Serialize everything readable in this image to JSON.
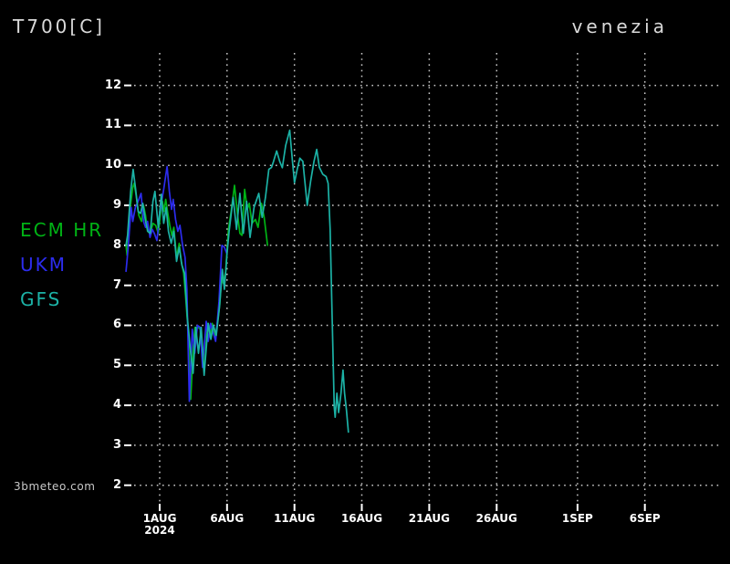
{
  "header": {
    "title": "T700[C]",
    "location": "venezia"
  },
  "watermark": "3bmeteo.com",
  "legend": {
    "items": [
      {
        "label": "ECM HR",
        "color": "#00b315"
      },
      {
        "label": "UKM",
        "color": "#2c2cee"
      },
      {
        "label": "GFS",
        "color": "#1cb2a6"
      }
    ]
  },
  "colors": {
    "background": "#000000",
    "grid": "#c9c9c9",
    "axis_text": "#ffffff",
    "header_text": "#d9d9d9"
  },
  "chart_data": {
    "type": "line",
    "title": "T700[C]",
    "subtitle": "venezia",
    "xlabel": "",
    "ylabel": "",
    "ylim": [
      2,
      12
    ],
    "grid": "dotted",
    "legend_position": "left",
    "x_unit": "days relative to 1 AUG 2024",
    "yticks": [
      12,
      11,
      10,
      9,
      8,
      7,
      6,
      5,
      4,
      3,
      2
    ],
    "xticks": [
      {
        "day": 0,
        "label": "1AUG",
        "sub": "2024"
      },
      {
        "day": 5,
        "label": "6AUG"
      },
      {
        "day": 10,
        "label": "11AUG"
      },
      {
        "day": 15,
        "label": "16AUG"
      },
      {
        "day": 20,
        "label": "21AUG"
      },
      {
        "day": 25,
        "label": "26AUG"
      },
      {
        "day": 31,
        "label": "1SEP"
      },
      {
        "day": 36,
        "label": "6SEP"
      }
    ],
    "series": [
      {
        "name": "ECM HR",
        "color": "#00b315",
        "points": [
          [
            -2.5,
            8.0
          ],
          [
            -2.42,
            7.75
          ],
          [
            -2.2,
            8.9
          ],
          [
            -2.0,
            9.45
          ],
          [
            -1.9,
            9.55
          ],
          [
            -1.75,
            9.25
          ],
          [
            -1.55,
            8.75
          ],
          [
            -1.35,
            8.6
          ],
          [
            -1.2,
            9.0
          ],
          [
            -1.05,
            8.75
          ],
          [
            -0.9,
            8.35
          ],
          [
            -0.7,
            8.3
          ],
          [
            -0.5,
            8.55
          ],
          [
            -0.3,
            8.5
          ],
          [
            -0.1,
            8.3
          ],
          [
            0.1,
            8.9
          ],
          [
            0.2,
            9.1
          ],
          [
            0.32,
            8.85
          ],
          [
            0.45,
            9.15
          ],
          [
            0.6,
            8.8
          ],
          [
            0.75,
            8.5
          ],
          [
            0.9,
            8.25
          ],
          [
            1.05,
            8.45
          ],
          [
            1.25,
            7.7
          ],
          [
            1.45,
            8.05
          ],
          [
            1.6,
            7.6
          ],
          [
            1.78,
            7.3
          ],
          [
            1.95,
            6.6
          ],
          [
            2.1,
            5.9
          ],
          [
            2.3,
            4.15
          ],
          [
            2.5,
            5.5
          ],
          [
            2.62,
            5.95
          ],
          [
            2.85,
            5.95
          ],
          [
            3.0,
            5.9
          ],
          [
            3.15,
            5.3
          ],
          [
            3.3,
            4.85
          ],
          [
            3.55,
            6.05
          ],
          [
            3.75,
            5.7
          ],
          [
            3.9,
            6.05
          ],
          [
            4.1,
            5.7
          ],
          [
            4.3,
            6.1
          ],
          [
            4.45,
            6.5
          ],
          [
            4.6,
            7.2
          ],
          [
            4.72,
            7.05
          ],
          [
            4.9,
            7.35
          ],
          [
            5.1,
            8.4
          ],
          [
            5.3,
            8.85
          ],
          [
            5.55,
            9.5
          ],
          [
            5.75,
            8.85
          ],
          [
            5.95,
            8.3
          ],
          [
            6.1,
            8.25
          ],
          [
            6.3,
            9.4
          ],
          [
            6.5,
            8.9
          ],
          [
            6.65,
            9.05
          ],
          [
            6.85,
            8.55
          ],
          [
            7.1,
            8.65
          ],
          [
            7.3,
            8.45
          ],
          [
            7.55,
            9.05
          ],
          [
            7.75,
            8.7
          ],
          [
            8.0,
            8.0
          ]
        ]
      },
      {
        "name": "UKM",
        "color": "#2c2cee",
        "points": [
          [
            -2.5,
            7.35
          ],
          [
            -2.35,
            7.9
          ],
          [
            -2.12,
            8.95
          ],
          [
            -2.0,
            8.6
          ],
          [
            -1.8,
            8.95
          ],
          [
            -1.6,
            9.1
          ],
          [
            -1.38,
            9.3
          ],
          [
            -1.2,
            8.6
          ],
          [
            -1.05,
            8.45
          ],
          [
            -0.9,
            8.6
          ],
          [
            -0.72,
            8.2
          ],
          [
            -0.55,
            8.4
          ],
          [
            -0.4,
            8.3
          ],
          [
            -0.2,
            8.12
          ],
          [
            0.0,
            8.8
          ],
          [
            0.3,
            9.4
          ],
          [
            0.55,
            9.97
          ],
          [
            0.72,
            9.35
          ],
          [
            0.88,
            8.9
          ],
          [
            1.0,
            9.15
          ],
          [
            1.18,
            8.65
          ],
          [
            1.35,
            8.35
          ],
          [
            1.5,
            8.5
          ],
          [
            1.7,
            8.0
          ],
          [
            1.88,
            7.7
          ],
          [
            2.02,
            6.9
          ],
          [
            2.2,
            4.1
          ],
          [
            2.42,
            5.9
          ],
          [
            2.6,
            5.3
          ],
          [
            2.8,
            6.0
          ],
          [
            3.0,
            5.95
          ],
          [
            3.18,
            4.95
          ],
          [
            3.45,
            6.1
          ],
          [
            3.6,
            5.6
          ],
          [
            3.78,
            6.05
          ],
          [
            3.95,
            5.85
          ],
          [
            4.15,
            5.6
          ],
          [
            4.4,
            6.6
          ],
          [
            4.62,
            8.0
          ],
          [
            4.8,
            7.95
          ],
          [
            5.0,
            7.78
          ]
        ]
      },
      {
        "name": "GFS",
        "color": "#1cb2a6",
        "points": [
          [
            -2.5,
            8.0
          ],
          [
            -2.38,
            8.25
          ],
          [
            -2.15,
            9.35
          ],
          [
            -1.97,
            9.9
          ],
          [
            -1.8,
            9.45
          ],
          [
            -1.6,
            8.85
          ],
          [
            -1.42,
            8.8
          ],
          [
            -1.25,
            9.05
          ],
          [
            -1.05,
            8.6
          ],
          [
            -0.88,
            8.35
          ],
          [
            -0.7,
            8.3
          ],
          [
            -0.5,
            9.1
          ],
          [
            -0.35,
            9.35
          ],
          [
            -0.1,
            8.45
          ],
          [
            0.12,
            9.28
          ],
          [
            0.3,
            8.55
          ],
          [
            0.48,
            8.95
          ],
          [
            0.65,
            8.35
          ],
          [
            0.85,
            8.05
          ],
          [
            1.05,
            8.35
          ],
          [
            1.25,
            7.6
          ],
          [
            1.45,
            7.95
          ],
          [
            1.65,
            7.5
          ],
          [
            1.85,
            7.3
          ],
          [
            2.05,
            6.2
          ],
          [
            2.3,
            5.3
          ],
          [
            2.48,
            4.8
          ],
          [
            2.68,
            5.95
          ],
          [
            2.88,
            5.3
          ],
          [
            3.08,
            5.95
          ],
          [
            3.3,
            4.75
          ],
          [
            3.6,
            6.05
          ],
          [
            3.8,
            5.65
          ],
          [
            3.98,
            6.0
          ],
          [
            4.2,
            5.75
          ],
          [
            4.45,
            6.5
          ],
          [
            4.65,
            7.4
          ],
          [
            4.8,
            6.9
          ],
          [
            5.0,
            7.8
          ],
          [
            5.15,
            8.35
          ],
          [
            5.45,
            9.2
          ],
          [
            5.7,
            8.4
          ],
          [
            5.95,
            9.3
          ],
          [
            6.2,
            8.3
          ],
          [
            6.45,
            9.1
          ],
          [
            6.7,
            8.2
          ],
          [
            7.0,
            8.95
          ],
          [
            7.35,
            9.3
          ],
          [
            7.6,
            8.7
          ],
          [
            7.85,
            9.2
          ],
          [
            8.1,
            9.9
          ],
          [
            8.3,
            9.95
          ],
          [
            8.45,
            10.1
          ],
          [
            8.68,
            10.36
          ],
          [
            8.9,
            10.1
          ],
          [
            9.1,
            9.94
          ],
          [
            9.35,
            10.5
          ],
          [
            9.65,
            10.88
          ],
          [
            9.85,
            10.1
          ],
          [
            10.0,
            9.57
          ],
          [
            10.2,
            9.9
          ],
          [
            10.4,
            10.18
          ],
          [
            10.62,
            10.1
          ],
          [
            10.95,
            9.0
          ],
          [
            11.2,
            9.6
          ],
          [
            11.45,
            10.1
          ],
          [
            11.65,
            10.4
          ],
          [
            11.85,
            9.95
          ],
          [
            12.1,
            9.78
          ],
          [
            12.35,
            9.72
          ],
          [
            12.5,
            9.55
          ],
          [
            12.65,
            8.4
          ],
          [
            12.8,
            6.1
          ],
          [
            12.95,
            3.95
          ],
          [
            13.02,
            3.7
          ],
          [
            13.15,
            4.3
          ],
          [
            13.28,
            3.82
          ],
          [
            13.45,
            4.3
          ],
          [
            13.6,
            4.88
          ],
          [
            13.72,
            4.3
          ],
          [
            13.85,
            3.9
          ],
          [
            14.0,
            3.33
          ]
        ]
      }
    ]
  }
}
